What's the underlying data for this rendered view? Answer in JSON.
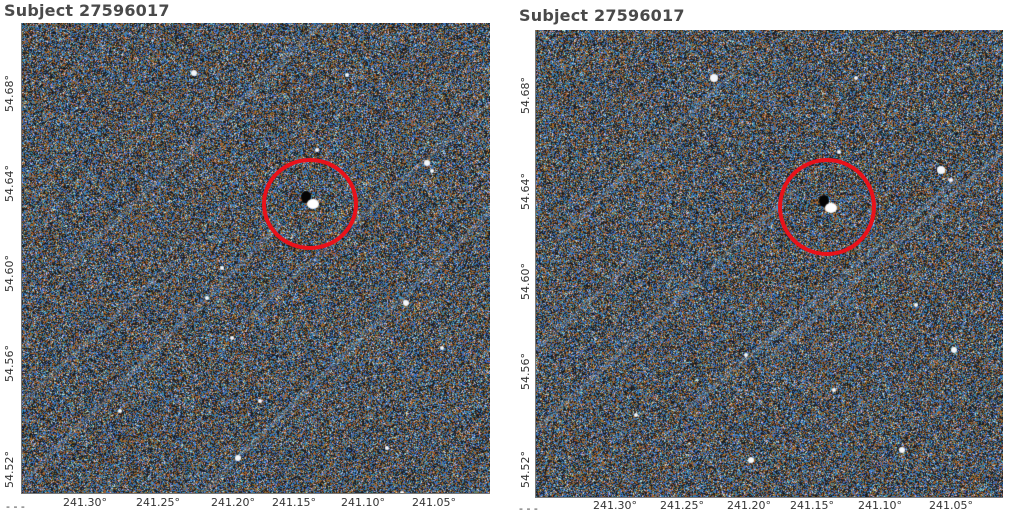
{
  "panels": [
    {
      "title": "Subject 27596017",
      "y_ticks": [
        "54.68°",
        "54.64°",
        "54.60°",
        "54.56°",
        "54.52°"
      ],
      "x_ticks": [
        "241.30°",
        "241.25°",
        "241.20°",
        "241.15°",
        "241.10°",
        "241.05°"
      ],
      "x_prefix": "- - -",
      "annotation": "red-circle",
      "annotation_color": "#e8121a"
    },
    {
      "title": "Subject 27596017",
      "y_ticks": [
        "54.68°",
        "54.64°",
        "54.60°",
        "54.56°",
        "54.52°"
      ],
      "x_ticks": [
        "241.30°",
        "241.25°",
        "241.20°",
        "241.15°",
        "241.10°",
        "241.05°"
      ],
      "x_prefix": "- - -",
      "annotation": "red-circle",
      "annotation_color": "#e8121a"
    }
  ],
  "colors": {
    "noise_blue": "#3e6e9e",
    "noise_orange": "#a0652a",
    "background_dark": "#1b1f24",
    "title_gray": "#4a4a4a"
  }
}
